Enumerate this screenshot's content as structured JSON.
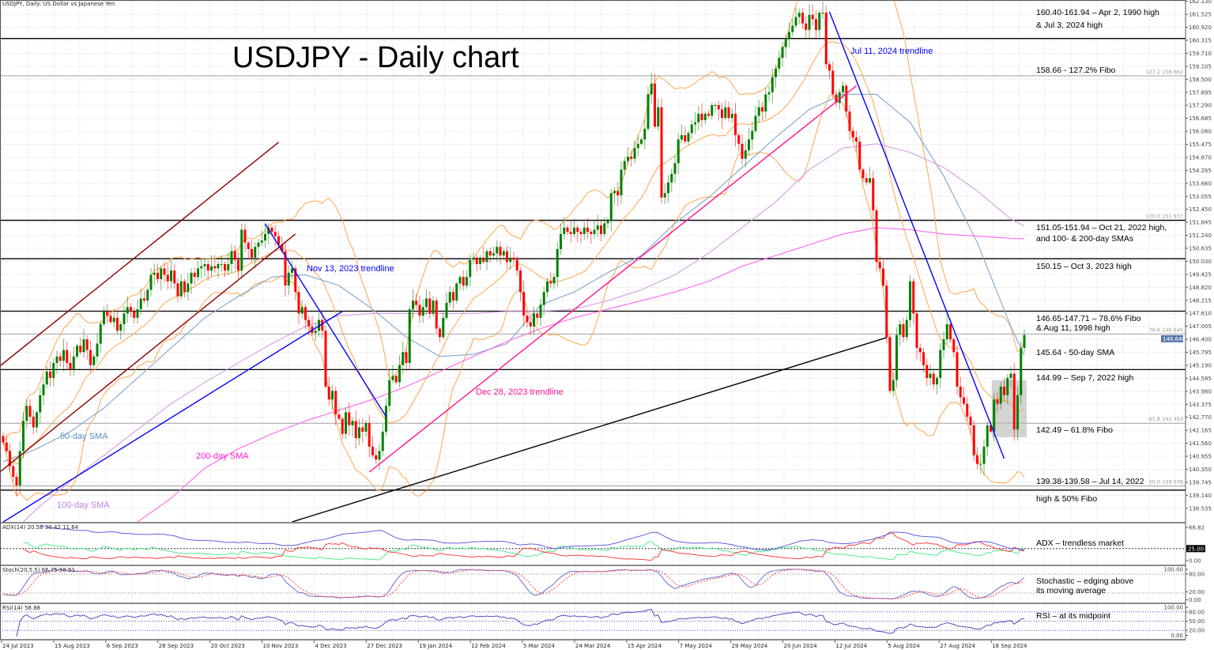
{
  "header": {
    "symbol_info": "USDJPY, Daily:  US Dollar vs Japanese Yen"
  },
  "title": "USDJPY - Daily chart",
  "chart_labels": {
    "nov13_trendline": "Nov 13, 2023 trendline",
    "dec28_trendline": "Dec 28, 2023 trendline",
    "jul11_trendline": "Jul 11, 2024 trendline",
    "sma50": "50-day SMA",
    "sma100": "100-day SMA",
    "sma200": "200-day SMA"
  },
  "annotations": [
    {
      "line1": "160.40-161.94 – Apr 2, 1990 high",
      "line2": "& Jul 3, 2024 high"
    },
    {
      "line1": "158.66 - 127.2% Fibo",
      "line2": ""
    },
    {
      "line1": "151.05-151.94 – Oct 21, 2022 high,",
      "line2": "and 100- & 200-day SMAs"
    },
    {
      "line1": "150.15 – Oct 3, 2023 high",
      "line2": ""
    },
    {
      "line1": "146.65-147.71 – 78.6% Fibo",
      "line2": "& Aug 11, 1998 high"
    },
    {
      "line1": "145.64 - 50-day SMA",
      "line2": ""
    },
    {
      "line1": "144.99 – Sep 7, 2022 high",
      "line2": ""
    },
    {
      "line1": "142.49 – 61.8% Fibo",
      "line2": ""
    },
    {
      "line1": "139.38-139.58 – Jul 14, 2022",
      "line2": "high & 50% Fibo"
    }
  ],
  "indicator_notes": {
    "adx": "ADX – trendless market",
    "stoch1": "Stochastic – edging above",
    "stoch2": "its moving average",
    "rsi": "RSI – at its midpoint"
  },
  "colors": {
    "bull": "#008000",
    "bear": "#ff0000",
    "bollinger": "#ffa54f",
    "sma50": "#7fa7cc",
    "sma100": "#d49ee6",
    "sma200": "#ff66ee",
    "trend_blue": "#0000ff",
    "trend_pink": "#ff1493",
    "trend_darkred": "#8b0000",
    "trend_black": "#000000",
    "adx": "#6060e0",
    "plus_di": "#50e890",
    "minus_di": "#ff4040",
    "stoch_k": "#7070d0",
    "stoch_d": "#ff4040",
    "rsi": "#5050c0"
  },
  "chart_data": {
    "type": "candlestick",
    "title": "USDJPY - Daily chart",
    "last_price": "146.646",
    "closes": [
      141.6,
      141.2,
      140.5,
      140.0,
      139.6,
      141.2,
      142.6,
      143.3,
      142.8,
      142.3,
      143.0,
      143.8,
      144.3,
      144.9,
      144.6,
      145.3,
      145.6,
      145.4,
      145.9,
      145.3,
      145.0,
      145.6,
      146.1,
      145.8,
      146.4,
      145.9,
      145.2,
      145.6,
      146.2,
      147.1,
      147.7,
      147.5,
      147.2,
      147.4,
      146.8,
      147.1,
      147.6,
      147.9,
      147.7,
      147.4,
      147.8,
      148.3,
      148.2,
      148.7,
      149.4,
      149.5,
      149.2,
      149.7,
      149.4,
      149.1,
      149.6,
      149.0,
      148.4,
      149.1,
      148.6,
      149.0,
      149.5,
      149.3,
      149.7,
      149.8,
      149.9,
      149.6,
      149.8,
      149.7,
      149.9,
      149.9,
      149.6,
      149.9,
      150.5,
      150.1,
      149.6,
      151.5,
      150.9,
      150.6,
      150.2,
      150.7,
      150.9,
      151.0,
      151.3,
      151.6,
      151.4,
      151.2,
      150.8,
      150.5,
      148.9,
      149.5,
      149.7,
      148.6,
      147.6,
      147.9,
      147.3,
      147.0,
      146.7,
      146.8,
      147.3,
      146.8,
      144.2,
      143.6,
      144.0,
      142.9,
      142.7,
      142.0,
      143.0,
      142.4,
      142.6,
      141.8,
      142.3,
      142.1,
      142.5,
      141.4,
      141.0,
      140.8,
      141.2,
      142.1,
      143.3,
      144.5,
      144.7,
      144.4,
      145.2,
      145.8,
      145.3,
      147.8,
      148.2,
      148.0,
      147.5,
      147.9,
      148.3,
      147.6,
      148.2,
      146.9,
      146.5,
      147.4,
      148.1,
      148.6,
      148.2,
      149.0,
      149.3,
      148.9,
      149.3,
      150.1,
      150.2,
      149.9,
      150.2,
      150.0,
      150.5,
      150.3,
      150.4,
      150.7,
      150.3,
      150.5,
      150.0,
      150.2,
      150.1,
      149.6,
      148.6,
      147.5,
      147.2,
      147.0,
      147.6,
      147.4,
      148.0,
      148.6,
      149.1,
      149.0,
      149.3,
      150.6,
      151.3,
      151.6,
      151.4,
      151.3,
      151.6,
      151.4,
      151.3,
      151.6,
      151.4,
      151.3,
      151.5,
      151.7,
      151.3,
      151.8,
      151.9,
      153.2,
      153.3,
      153.1,
      154.3,
      154.7,
      154.9,
      154.8,
      155.3,
      155.5,
      155.7,
      156.2,
      157.8,
      158.3,
      156.3,
      157.2,
      153.0,
      153.2,
      153.7,
      154.1,
      154.6,
      155.7,
      155.9,
      155.6,
      156.0,
      156.4,
      156.5,
      156.9,
      156.6,
      156.9,
      156.8,
      157.3,
      157.3,
      157.1,
      156.7,
      157.2,
      156.7,
      156.9,
      155.9,
      155.5,
      154.8,
      155.2,
      155.7,
      156.1,
      156.8,
      157.2,
      157.0,
      157.8,
      157.9,
      158.6,
      159.0,
      159.5,
      160.0,
      160.4,
      160.7,
      161.0,
      161.4,
      161.6,
      161.1,
      160.8,
      161.5,
      161.3,
      160.8,
      161.6,
      161.6,
      159.2,
      158.9,
      157.8,
      157.4,
      157.9,
      158.2,
      157.0,
      156.1,
      155.8,
      155.6,
      154.3,
      153.9,
      153.7,
      153.9,
      152.4,
      150.0,
      149.7,
      148.9,
      146.5,
      144.0,
      144.5,
      146.6,
      147.1,
      146.5,
      147.3,
      149.1,
      147.6,
      146.0,
      145.8,
      145.2,
      144.6,
      144.8,
      144.3,
      144.6,
      145.9,
      146.4,
      147.1,
      146.4,
      145.8,
      144.2,
      143.7,
      143.4,
      142.8,
      142.4,
      141.0,
      140.6,
      140.6,
      141.4,
      142.4,
      142.1,
      143.6,
      143.4,
      144.2,
      143.8,
      144.6,
      144.8,
      142.2,
      143.8,
      146.0,
      146.6
    ],
    "price_axis": {
      "ticks": [
        "162.130",
        "161.525",
        "160.920",
        "160.315",
        "159.710",
        "159.105",
        "158.500",
        "157.895",
        "157.290",
        "156.685",
        "156.080",
        "155.475",
        "154.870",
        "154.265",
        "153.660",
        "153.055",
        "152.450",
        "151.845",
        "151.240",
        "150.635",
        "150.030",
        "149.425",
        "148.820",
        "148.215",
        "147.610",
        "147.005",
        "146.400",
        "145.795",
        "145.190",
        "144.585",
        "143.980",
        "143.375",
        "142.770",
        "142.165",
        "141.560",
        "140.955",
        "140.350",
        "139.745",
        "139.140",
        "138.535"
      ]
    },
    "date_ticks": [
      "24 Jul 2023",
      "15 Aug 2023",
      "6 Sep 2023",
      "28 Sep 2023",
      "20 Oct 2023",
      "10 Nov 2023",
      "4 Dec 2023",
      "27 Dec 2023",
      "19 Jan 2024",
      "12 Feb 2024",
      "5 Mar 2024",
      "24 Mar 2024",
      "15 Apr 2024",
      "7 May 2024",
      "29 May 2024",
      "20 Jun 2024",
      "12 Jul 2024",
      "5 Aug 2024",
      "27 Aug 2024",
      "18 Sep 2024"
    ],
    "moving_averages": [
      {
        "name": "50-day SMA",
        "points": [
          [
            0,
            140.7
          ],
          [
            10,
            141.3
          ],
          [
            20,
            142.1
          ],
          [
            30,
            143.2
          ],
          [
            40,
            144.6
          ],
          [
            50,
            146.0
          ],
          [
            60,
            147.4
          ],
          [
            70,
            148.4
          ],
          [
            80,
            149.3
          ],
          [
            90,
            149.4
          ],
          [
            100,
            148.9
          ],
          [
            110,
            147.8
          ],
          [
            120,
            146.5
          ],
          [
            130,
            145.6
          ],
          [
            140,
            145.7
          ],
          [
            150,
            146.2
          ],
          [
            160,
            148.0
          ],
          [
            170,
            148.6
          ],
          [
            180,
            149.5
          ],
          [
            190,
            150.3
          ],
          [
            200,
            151.8
          ],
          [
            210,
            153.0
          ],
          [
            220,
            154.4
          ],
          [
            230,
            155.8
          ],
          [
            240,
            157.1
          ],
          [
            250,
            157.8
          ],
          [
            260,
            157.8
          ],
          [
            270,
            156.5
          ],
          [
            280,
            154.0
          ],
          [
            290,
            150.9
          ],
          [
            300,
            147.0
          ],
          [
            304,
            145.64
          ]
        ]
      },
      {
        "name": "100-day SMA",
        "points": [
          [
            0,
            137.0
          ],
          [
            10,
            138.5
          ],
          [
            20,
            139.8
          ],
          [
            30,
            141.0
          ],
          [
            40,
            142.2
          ],
          [
            50,
            143.4
          ],
          [
            60,
            144.4
          ],
          [
            70,
            145.3
          ],
          [
            80,
            146.2
          ],
          [
            90,
            147.0
          ],
          [
            100,
            147.5
          ],
          [
            110,
            147.6
          ],
          [
            120,
            147.6
          ],
          [
            130,
            147.6
          ],
          [
            140,
            147.6
          ],
          [
            150,
            147.7
          ],
          [
            160,
            147.7
          ],
          [
            170,
            147.8
          ],
          [
            180,
            148.2
          ],
          [
            190,
            148.7
          ],
          [
            200,
            149.4
          ],
          [
            210,
            150.4
          ],
          [
            220,
            151.6
          ],
          [
            230,
            152.8
          ],
          [
            240,
            154.3
          ],
          [
            250,
            155.3
          ],
          [
            260,
            155.5
          ],
          [
            270,
            155.1
          ],
          [
            280,
            154.4
          ],
          [
            290,
            153.3
          ],
          [
            300,
            152.0
          ],
          [
            304,
            151.67
          ]
        ]
      },
      {
        "name": "200-day SMA",
        "points": [
          [
            0,
            134.5
          ],
          [
            10,
            135.3
          ],
          [
            20,
            136.2
          ],
          [
            30,
            137.0
          ],
          [
            40,
            137.9
          ],
          [
            50,
            139.0
          ],
          [
            60,
            140.4
          ],
          [
            70,
            141.3
          ],
          [
            80,
            142.0
          ],
          [
            90,
            142.6
          ],
          [
            100,
            143.1
          ],
          [
            110,
            143.6
          ],
          [
            120,
            144.2
          ],
          [
            130,
            144.9
          ],
          [
            140,
            145.6
          ],
          [
            150,
            146.3
          ],
          [
            160,
            146.9
          ],
          [
            170,
            147.4
          ],
          [
            180,
            147.8
          ],
          [
            190,
            148.2
          ],
          [
            200,
            148.6
          ],
          [
            210,
            149.1
          ],
          [
            220,
            149.8
          ],
          [
            230,
            150.3
          ],
          [
            240,
            150.8
          ],
          [
            250,
            151.3
          ],
          [
            260,
            151.6
          ],
          [
            270,
            151.5
          ],
          [
            280,
            151.3
          ],
          [
            290,
            151.2
          ],
          [
            300,
            151.1
          ],
          [
            304,
            151.08
          ]
        ]
      }
    ],
    "levels": [
      160.4,
      151.94,
      150.15,
      147.71,
      144.99,
      139.38
    ],
    "fibo": [
      {
        "label": "127.2 158.662",
        "price": 158.662
      },
      {
        "label": "100.0 151.937",
        "price": 151.937
      },
      {
        "label": "78.6 146.646",
        "price": 146.646
      },
      {
        "label": "61.8 142.493",
        "price": 142.493
      },
      {
        "label": "50.0 139.576",
        "price": 139.576
      }
    ],
    "trendlines": [
      {
        "color": "#8b0000",
        "from": [
          -1,
          145.15
        ],
        "to": [
          82,
          155.57
        ]
      },
      {
        "color": "#8b0000",
        "from": [
          -1,
          140.22
        ],
        "to": [
          87,
          151.3
        ]
      },
      {
        "label": "Nov 13, 2023 trendline",
        "color": "#0000ff",
        "from": [
          78,
          151.77
        ],
        "to": [
          114,
          142.8
        ]
      },
      {
        "color": "#0000ff",
        "from": [
          -1,
          137.8
        ],
        "to": [
          101,
          147.7
        ]
      },
      {
        "label": "Dec 28, 2023 trendline",
        "color": "#ff1493",
        "from": [
          109,
          140.22
        ],
        "to": [
          254,
          158.2
        ]
      },
      {
        "label": "Jul 11, 2024 trendline",
        "color": "#0000ff",
        "from": [
          246,
          161.64
        ],
        "to": [
          298,
          140.85
        ]
      },
      {
        "color": "#000000",
        "from": [
          86,
          137.9
        ],
        "to": [
          263,
          146.48
        ]
      }
    ],
    "highlight_box": {
      "from_bar": 295,
      "to_bar": 304,
      "price_high": 144.5,
      "price_low": 141.84
    },
    "indicators": {
      "adx": {
        "label": "ADX(14) 20.58 30.42 11.64",
        "axis": [
          "66.82",
          "25.00",
          "0.00"
        ],
        "level": 25,
        "max": 66.82
      },
      "stoch": {
        "label": "Stoch(20,5,5) 66.75 58.51",
        "axis": [
          "100.00",
          "80.00",
          "20.00",
          "0.00"
        ],
        "levels": [
          80,
          20
        ]
      },
      "rsi": {
        "label": "RSI(14) 58.88",
        "axis": [
          "100.00",
          "80.00",
          "50.00",
          "20.00",
          "0.00"
        ],
        "levels": [
          80,
          50,
          20
        ]
      }
    }
  }
}
